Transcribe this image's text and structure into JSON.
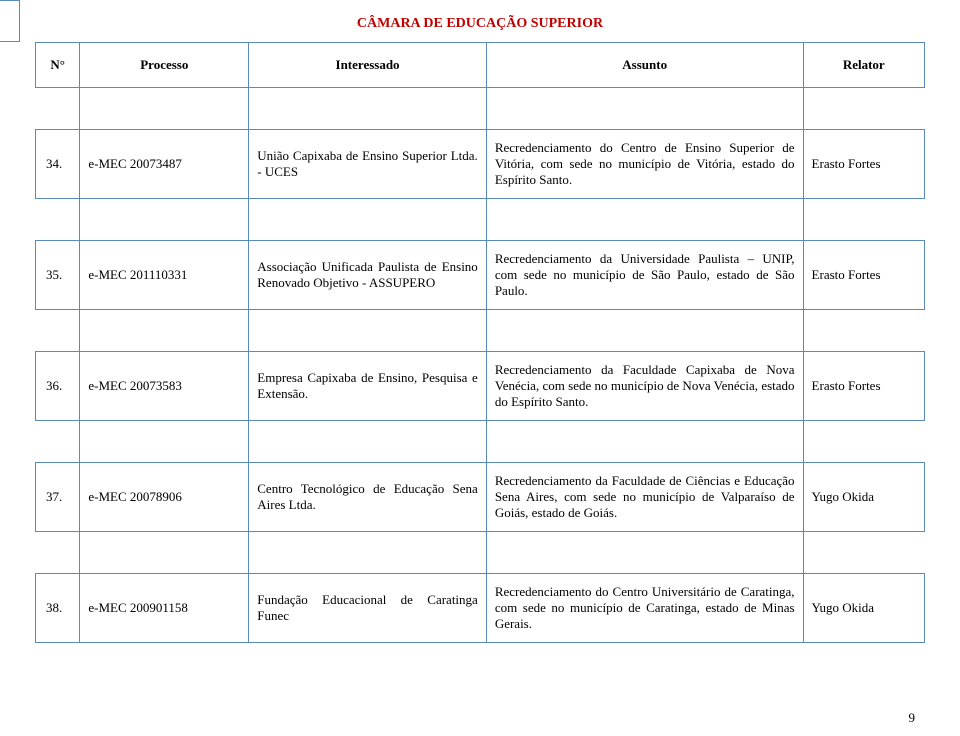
{
  "title": "CÂMARA DE EDUCAÇÃO SUPERIOR",
  "headers": {
    "n": "N°",
    "processo": "Processo",
    "interessado": "Interessado",
    "assunto": "Assunto",
    "relator": "Relator"
  },
  "rows": [
    {
      "n": "34.",
      "processo": "e-MEC 20073487",
      "interessado": "União Capixaba de Ensino Superior Ltda. - UCES",
      "assunto": "Recredenciamento do Centro de Ensino Superior de Vitória, com sede no município de Vitória, estado do Espírito Santo.",
      "relator": "Erasto Fortes"
    },
    {
      "n": "35.",
      "processo": "e-MEC 201110331",
      "interessado": "Associação Unificada Paulista de Ensino Renovado Objetivo - ASSUPERO",
      "assunto": "Recredenciamento da Universidade Paulista – UNIP, com sede no município de São Paulo, estado de São Paulo.",
      "relator": "Erasto Fortes"
    },
    {
      "n": "36.",
      "processo": "e-MEC 20073583",
      "interessado": "Empresa Capixaba de Ensino, Pesquisa e Extensão.",
      "assunto": "Recredenciamento da Faculdade Capixaba de Nova Venécia, com sede no município de Nova Venécia, estado do Espírito Santo.",
      "relator": "Erasto Fortes"
    },
    {
      "n": "37.",
      "processo": "e-MEC 20078906",
      "interessado": "Centro Tecnológico de Educação Sena Aires Ltda.",
      "assunto": "Recredenciamento da Faculdade de Ciências e Educação Sena Aires, com sede no município de Valparaíso de Goiás, estado de Goiás.",
      "relator": "Yugo Okida"
    },
    {
      "n": "38.",
      "processo": "e-MEC 200901158",
      "interessado": "Fundação Educacional de Caratinga Funec",
      "assunto": "Recredenciamento do Centro Universitário de Caratinga, com sede no município de Caratinga, estado de Minas Gerais.",
      "relator": "Yugo Okida"
    }
  ],
  "page_number": "9"
}
